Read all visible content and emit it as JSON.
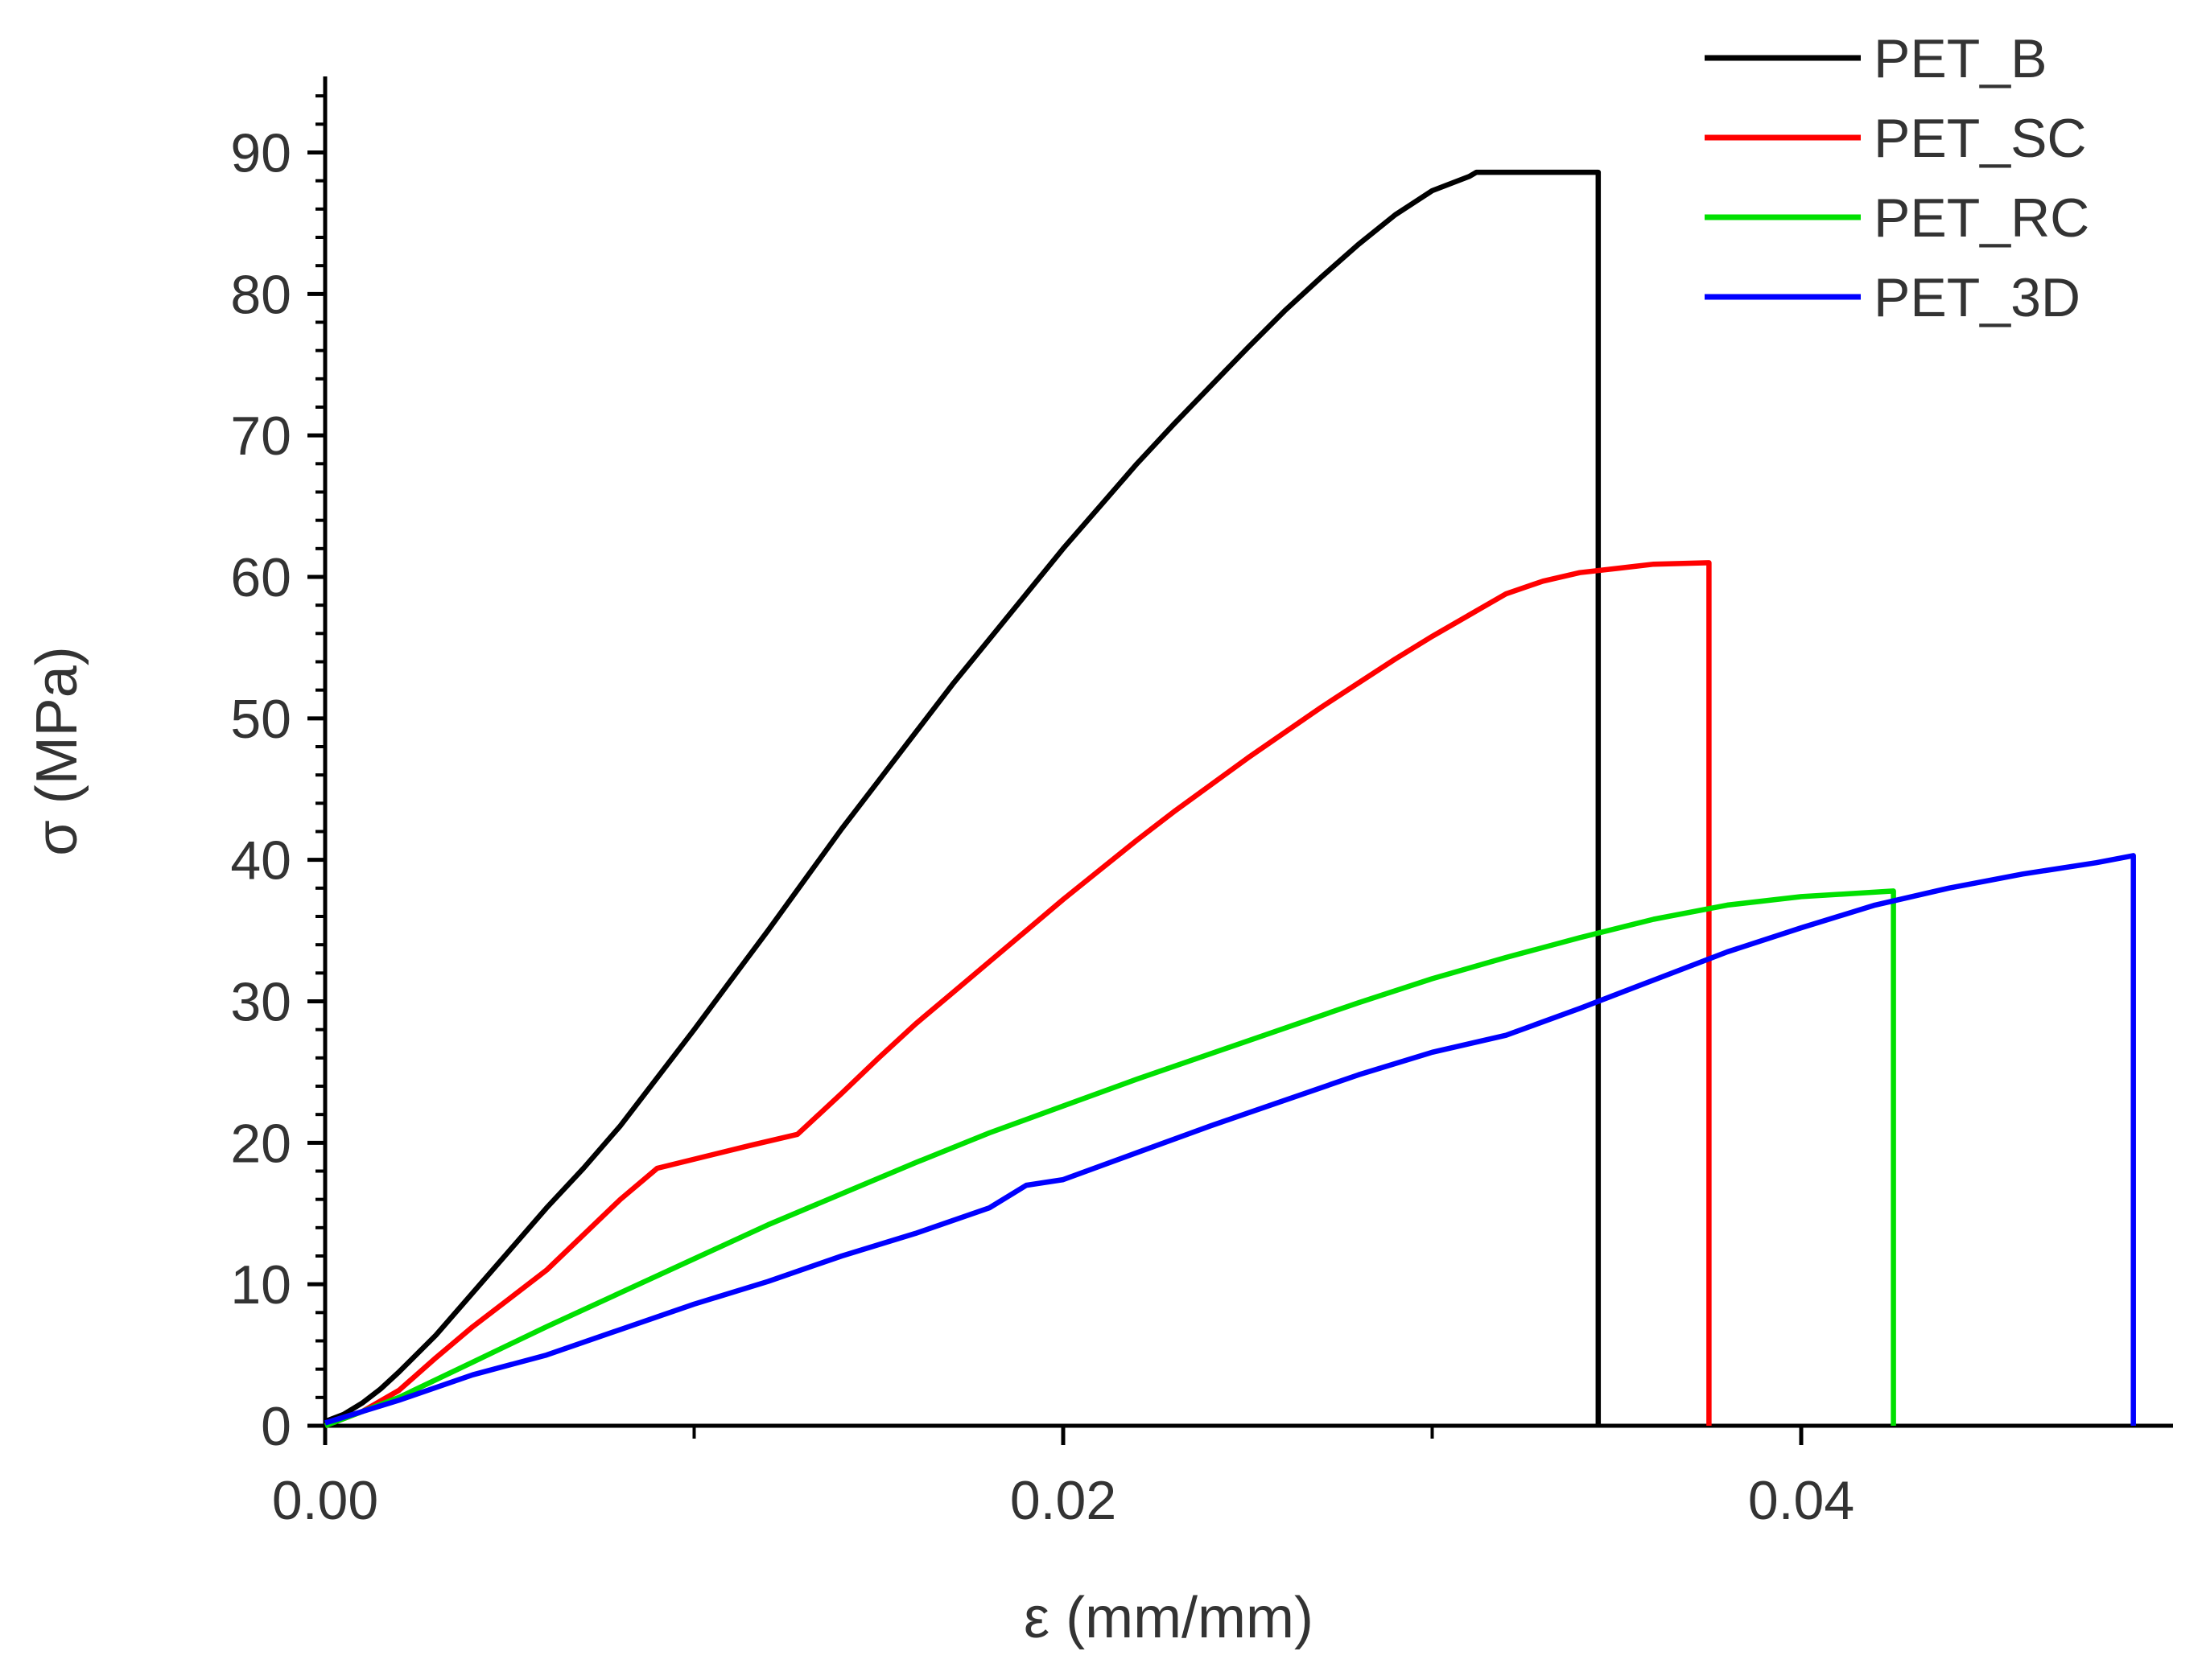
{
  "chart_data": {
    "type": "line",
    "title": "",
    "xlabel": "ε (mm/mm)",
    "ylabel": "σ (MPa)",
    "xlim": [
      0,
      0.0505
    ],
    "ylim": [
      0,
      95
    ],
    "x_ticks": [
      0.0,
      0.02,
      0.04
    ],
    "x_tick_labels": [
      "0.00",
      "0.02",
      "0.04"
    ],
    "x_minor_ticks": [
      0.01,
      0.03
    ],
    "y_ticks": [
      0,
      10,
      20,
      30,
      40,
      50,
      60,
      70,
      80,
      90
    ],
    "y_tick_labels": [
      "0",
      "10",
      "20",
      "30",
      "40",
      "50",
      "60",
      "70",
      "80",
      "90"
    ],
    "y_minor_step": 2,
    "grid": false,
    "legend_position": "top-right",
    "series": [
      {
        "name": "PET_B",
        "color": "#000000",
        "points": [
          [
            0.0,
            0.3
          ],
          [
            0.0005,
            0.8
          ],
          [
            0.001,
            1.6
          ],
          [
            0.0015,
            2.6
          ],
          [
            0.002,
            3.8
          ],
          [
            0.003,
            6.4
          ],
          [
            0.004,
            9.4
          ],
          [
            0.005,
            12.4
          ],
          [
            0.006,
            15.4
          ],
          [
            0.007,
            18.2
          ],
          [
            0.008,
            21.2
          ],
          [
            0.009,
            24.6
          ],
          [
            0.01,
            28.0
          ],
          [
            0.011,
            31.5
          ],
          [
            0.012,
            35.0
          ],
          [
            0.013,
            38.6
          ],
          [
            0.014,
            42.2
          ],
          [
            0.015,
            45.6
          ],
          [
            0.016,
            49.0
          ],
          [
            0.017,
            52.4
          ],
          [
            0.018,
            55.6
          ],
          [
            0.019,
            58.8
          ],
          [
            0.02,
            62.0
          ],
          [
            0.021,
            65.0
          ],
          [
            0.022,
            68.0
          ],
          [
            0.023,
            70.8
          ],
          [
            0.024,
            73.5
          ],
          [
            0.025,
            76.2
          ],
          [
            0.026,
            78.8
          ],
          [
            0.027,
            81.2
          ],
          [
            0.028,
            83.5
          ],
          [
            0.029,
            85.6
          ],
          [
            0.03,
            87.3
          ],
          [
            0.031,
            88.3
          ],
          [
            0.0312,
            88.6
          ],
          [
            0.0345,
            88.6
          ],
          [
            0.0345,
            0.0
          ]
        ]
      },
      {
        "name": "PET_SC",
        "color": "#ff0000",
        "points": [
          [
            0.0,
            0.0
          ],
          [
            0.001,
            1.0
          ],
          [
            0.002,
            2.5
          ],
          [
            0.003,
            4.8
          ],
          [
            0.004,
            7.0
          ],
          [
            0.005,
            9.0
          ],
          [
            0.006,
            11.0
          ],
          [
            0.007,
            13.5
          ],
          [
            0.008,
            16.0
          ],
          [
            0.009,
            18.2
          ],
          [
            0.0115,
            19.8
          ],
          [
            0.0128,
            20.6
          ],
          [
            0.014,
            23.5
          ],
          [
            0.015,
            26.0
          ],
          [
            0.016,
            28.4
          ],
          [
            0.017,
            30.6
          ],
          [
            0.018,
            32.8
          ],
          [
            0.019,
            35.0
          ],
          [
            0.02,
            37.2
          ],
          [
            0.021,
            39.3
          ],
          [
            0.022,
            41.4
          ],
          [
            0.023,
            43.4
          ],
          [
            0.024,
            45.3
          ],
          [
            0.025,
            47.2
          ],
          [
            0.026,
            49.0
          ],
          [
            0.027,
            50.8
          ],
          [
            0.028,
            52.5
          ],
          [
            0.029,
            54.2
          ],
          [
            0.03,
            55.8
          ],
          [
            0.031,
            57.3
          ],
          [
            0.032,
            58.8
          ],
          [
            0.033,
            59.7
          ],
          [
            0.034,
            60.3
          ],
          [
            0.035,
            60.6
          ],
          [
            0.036,
            60.9
          ],
          [
            0.0375,
            61.0
          ],
          [
            0.0375,
            0.0
          ]
        ]
      },
      {
        "name": "PET_RC",
        "color": "#00e000",
        "points": [
          [
            0.0,
            0.0
          ],
          [
            0.002,
            2.0
          ],
          [
            0.004,
            4.5
          ],
          [
            0.006,
            7.0
          ],
          [
            0.008,
            9.4
          ],
          [
            0.01,
            11.8
          ],
          [
            0.012,
            14.2
          ],
          [
            0.014,
            16.4
          ],
          [
            0.016,
            18.6
          ],
          [
            0.018,
            20.7
          ],
          [
            0.02,
            22.6
          ],
          [
            0.022,
            24.5
          ],
          [
            0.024,
            26.3
          ],
          [
            0.026,
            28.1
          ],
          [
            0.028,
            29.9
          ],
          [
            0.03,
            31.6
          ],
          [
            0.032,
            33.1
          ],
          [
            0.034,
            34.5
          ],
          [
            0.036,
            35.8
          ],
          [
            0.038,
            36.8
          ],
          [
            0.04,
            37.4
          ],
          [
            0.0425,
            37.8
          ],
          [
            0.0425,
            0.0
          ]
        ]
      },
      {
        "name": "PET_3D",
        "color": "#0000ff",
        "points": [
          [
            0.0,
            0.2
          ],
          [
            0.002,
            1.8
          ],
          [
            0.004,
            3.6
          ],
          [
            0.006,
            5.0
          ],
          [
            0.008,
            6.8
          ],
          [
            0.01,
            8.6
          ],
          [
            0.012,
            10.2
          ],
          [
            0.014,
            12.0
          ],
          [
            0.016,
            13.6
          ],
          [
            0.018,
            15.4
          ],
          [
            0.019,
            17.0
          ],
          [
            0.02,
            17.4
          ],
          [
            0.022,
            19.3
          ],
          [
            0.024,
            21.2
          ],
          [
            0.026,
            23.0
          ],
          [
            0.028,
            24.8
          ],
          [
            0.03,
            26.4
          ],
          [
            0.032,
            27.6
          ],
          [
            0.034,
            29.5
          ],
          [
            0.036,
            31.5
          ],
          [
            0.038,
            33.5
          ],
          [
            0.04,
            35.2
          ],
          [
            0.042,
            36.8
          ],
          [
            0.044,
            38.0
          ],
          [
            0.046,
            39.0
          ],
          [
            0.048,
            39.8
          ],
          [
            0.049,
            40.3
          ],
          [
            0.049,
            0.0
          ]
        ]
      }
    ]
  }
}
